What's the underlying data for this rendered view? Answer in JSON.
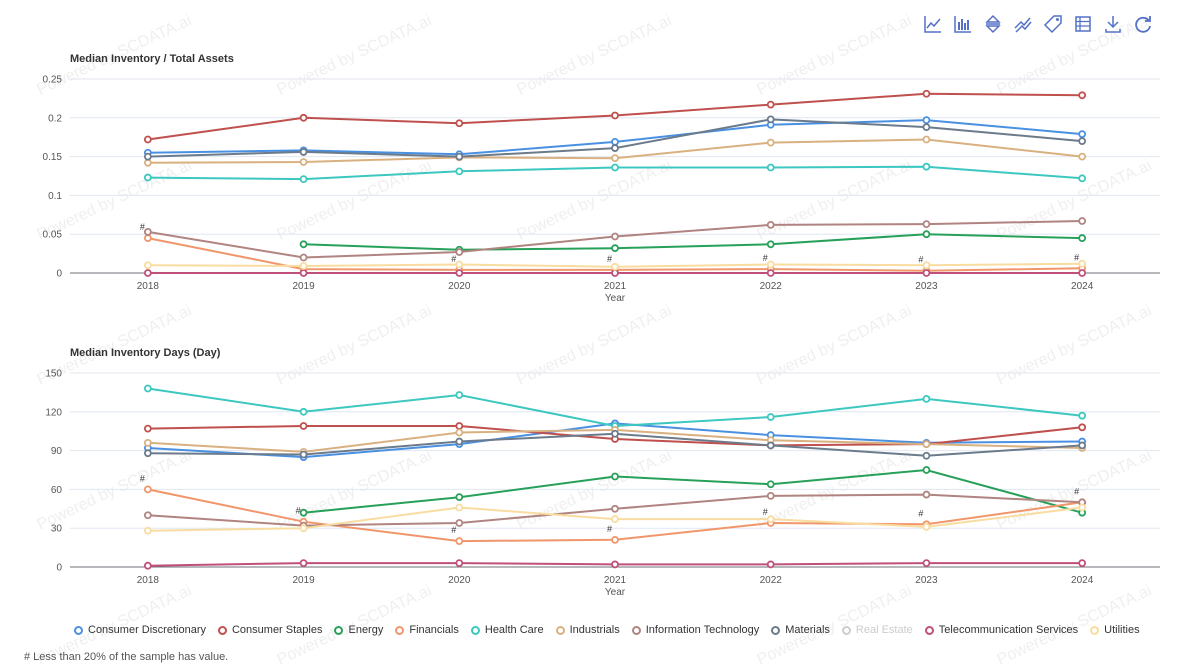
{
  "toolbar": {
    "icons": [
      "line-chart-icon",
      "bar-chart-icon",
      "stack-icon",
      "tiled-icon",
      "tag-icon",
      "data-view-icon",
      "download-icon",
      "refresh-icon"
    ]
  },
  "watermark": "Powered by SCDATA.ai",
  "footnote": "# Less than 20% of the sample has value.",
  "legend": [
    {
      "name": "Consumer Discretionary",
      "color": "#4a90e2",
      "visible": true
    },
    {
      "name": "Consumer Staples",
      "color": "#c0504d",
      "visible": true
    },
    {
      "name": "Energy",
      "color": "#27a05a",
      "visible": true
    },
    {
      "name": "Financials",
      "color": "#f0966a",
      "visible": true
    },
    {
      "name": "Health Care",
      "color": "#3cc8c0",
      "visible": true
    },
    {
      "name": "Industrials",
      "color": "#d9b080",
      "visible": true
    },
    {
      "name": "Information Technology",
      "color": "#b08480",
      "visible": true
    },
    {
      "name": "Materials",
      "color": "#6b7b8c",
      "visible": true
    },
    {
      "name": "Real Estate",
      "color": "#cccccc",
      "visible": false
    },
    {
      "name": "Telecommunication Services",
      "color": "#c0507a",
      "visible": true
    },
    {
      "name": "Utilities",
      "color": "#f8dca0",
      "visible": true
    }
  ],
  "chart_data": [
    {
      "type": "line",
      "title": "Median Inventory / Total Assets",
      "xlabel": "Year",
      "ylabel": "",
      "categories": [
        "2018",
        "2019",
        "2020",
        "2021",
        "2022",
        "2023",
        "2024"
      ],
      "ylim": [
        0,
        0.25
      ],
      "yticks": [
        "0",
        "0.05",
        "0.1",
        "0.15",
        "0.2",
        "0.25"
      ],
      "ytick_values": [
        0,
        0.05,
        0.1,
        0.15,
        0.2,
        0.25
      ],
      "hash_marks": [
        "2018",
        "2020",
        "2021",
        "2022",
        "2023",
        "2024"
      ],
      "series": [
        {
          "name": "Consumer Discretionary",
          "values": [
            0.155,
            0.158,
            0.153,
            0.169,
            0.191,
            0.197,
            0.179
          ]
        },
        {
          "name": "Consumer Staples",
          "values": [
            0.172,
            0.2,
            0.193,
            0.203,
            0.217,
            0.231,
            0.229
          ]
        },
        {
          "name": "Energy",
          "values": [
            null,
            0.037,
            0.03,
            0.032,
            0.037,
            0.05,
            0.045
          ]
        },
        {
          "name": "Financials",
          "values": [
            0.045,
            0.005,
            0.004,
            0.004,
            0.005,
            0.003,
            0.006
          ]
        },
        {
          "name": "Health Care",
          "values": [
            0.123,
            0.121,
            0.131,
            0.136,
            0.136,
            0.137,
            0.122
          ]
        },
        {
          "name": "Industrials",
          "values": [
            0.142,
            0.143,
            0.149,
            0.148,
            0.168,
            0.172,
            0.15
          ]
        },
        {
          "name": "Information Technology",
          "values": [
            0.053,
            0.02,
            0.027,
            0.047,
            0.062,
            0.063,
            0.067
          ]
        },
        {
          "name": "Materials",
          "values": [
            0.15,
            0.156,
            0.15,
            0.161,
            0.198,
            0.188,
            0.17
          ]
        },
        {
          "name": "Telecommunication Services",
          "values": [
            0.0,
            0.0,
            0.0,
            0.0,
            0.0,
            0.0,
            0.0
          ]
        },
        {
          "name": "Utilities",
          "values": [
            0.01,
            0.009,
            0.011,
            0.008,
            0.011,
            0.01,
            0.012
          ]
        }
      ]
    },
    {
      "type": "line",
      "title": "Median Inventory Days (Day)",
      "xlabel": "Year",
      "ylabel": "",
      "categories": [
        "2018",
        "2019",
        "2020",
        "2021",
        "2022",
        "2023",
        "2024"
      ],
      "ylim": [
        0,
        150
      ],
      "yticks": [
        "0",
        "30",
        "60",
        "90",
        "120",
        "150"
      ],
      "ytick_values": [
        0,
        30,
        60,
        90,
        120,
        150
      ],
      "hash_marks": [
        "2018",
        "2019",
        "2020",
        "2021",
        "2022",
        "2023",
        "2024"
      ],
      "series": [
        {
          "name": "Consumer Discretionary",
          "values": [
            92,
            85,
            95,
            111,
            102,
            96,
            97
          ]
        },
        {
          "name": "Consumer Staples",
          "values": [
            107,
            109,
            109,
            99,
            94,
            95,
            108
          ]
        },
        {
          "name": "Energy",
          "values": [
            null,
            42,
            54,
            70,
            64,
            75,
            42
          ]
        },
        {
          "name": "Financials",
          "values": [
            60,
            35,
            20,
            21,
            34,
            33,
            50
          ]
        },
        {
          "name": "Health Care",
          "values": [
            138,
            120,
            133,
            109,
            116,
            130,
            117
          ]
        },
        {
          "name": "Industrials",
          "values": [
            96,
            89,
            104,
            106,
            98,
            95,
            92
          ]
        },
        {
          "name": "Information Technology",
          "values": [
            40,
            32,
            34,
            45,
            55,
            56,
            50
          ]
        },
        {
          "name": "Materials",
          "values": [
            88,
            87,
            97,
            103,
            94,
            86,
            94
          ]
        },
        {
          "name": "Telecommunication Services",
          "values": [
            1,
            3,
            3,
            2,
            2,
            3,
            3
          ]
        },
        {
          "name": "Utilities",
          "values": [
            28,
            30,
            46,
            37,
            37,
            31,
            46
          ]
        }
      ]
    }
  ]
}
